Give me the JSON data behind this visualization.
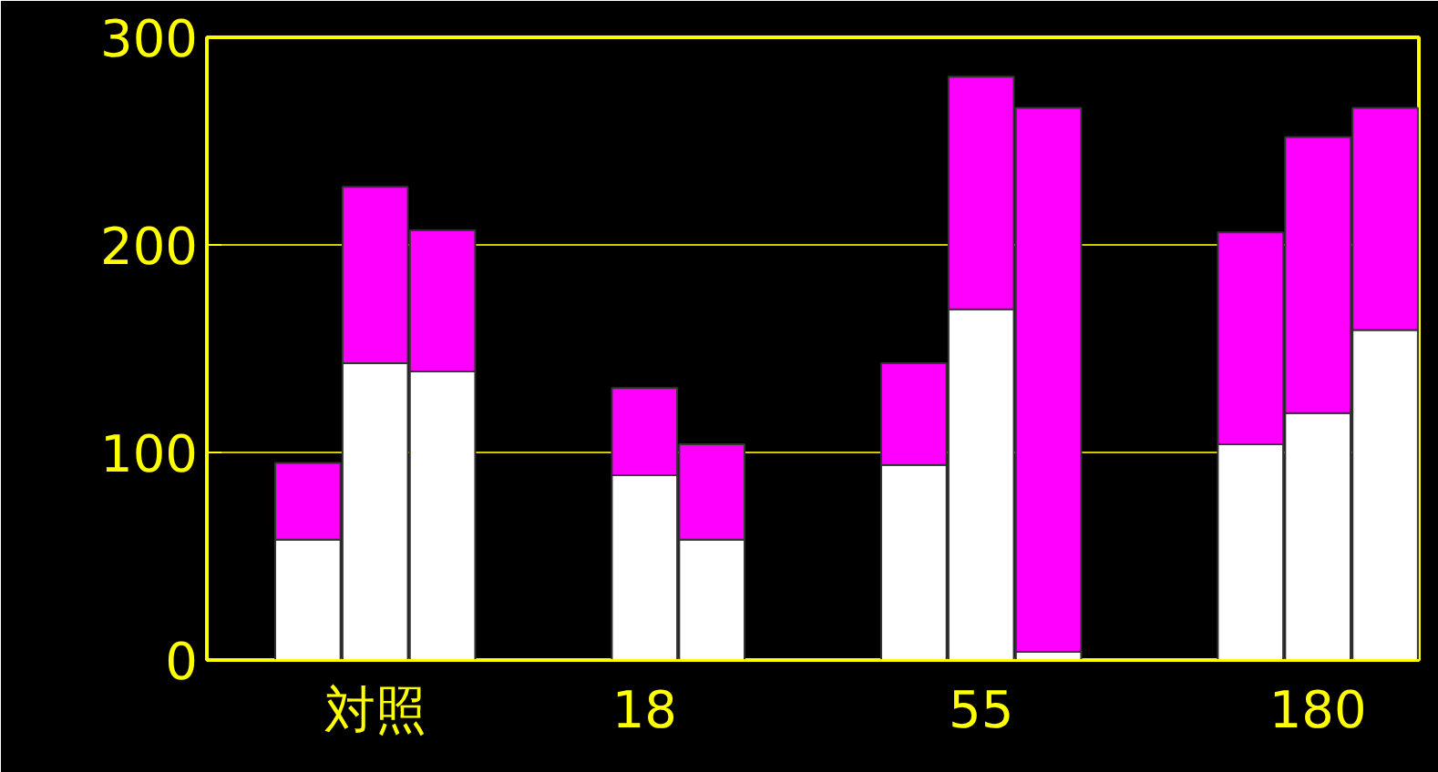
{
  "chart_data": {
    "type": "bar",
    "stacked": true,
    "categories": [
      null,
      "対照",
      null,
      null,
      null,
      "18",
      null,
      null,
      null,
      null,
      "55",
      null,
      null,
      null,
      null,
      "180",
      null
    ],
    "ylim": [
      0,
      300
    ],
    "yticks": [
      0,
      100,
      200,
      300
    ],
    "series": [
      {
        "color": "#ffffff",
        "values": [
          58,
          143,
          139,
          null,
          null,
          89,
          58,
          null,
          null,
          94,
          169,
          4,
          null,
          null,
          104,
          119,
          159
        ]
      },
      {
        "color": "#ff00ff",
        "values": [
          37,
          85,
          68,
          null,
          null,
          42,
          46,
          null,
          null,
          49,
          112,
          262,
          null,
          null,
          102,
          133,
          107
        ]
      }
    ],
    "grid": "y"
  }
}
